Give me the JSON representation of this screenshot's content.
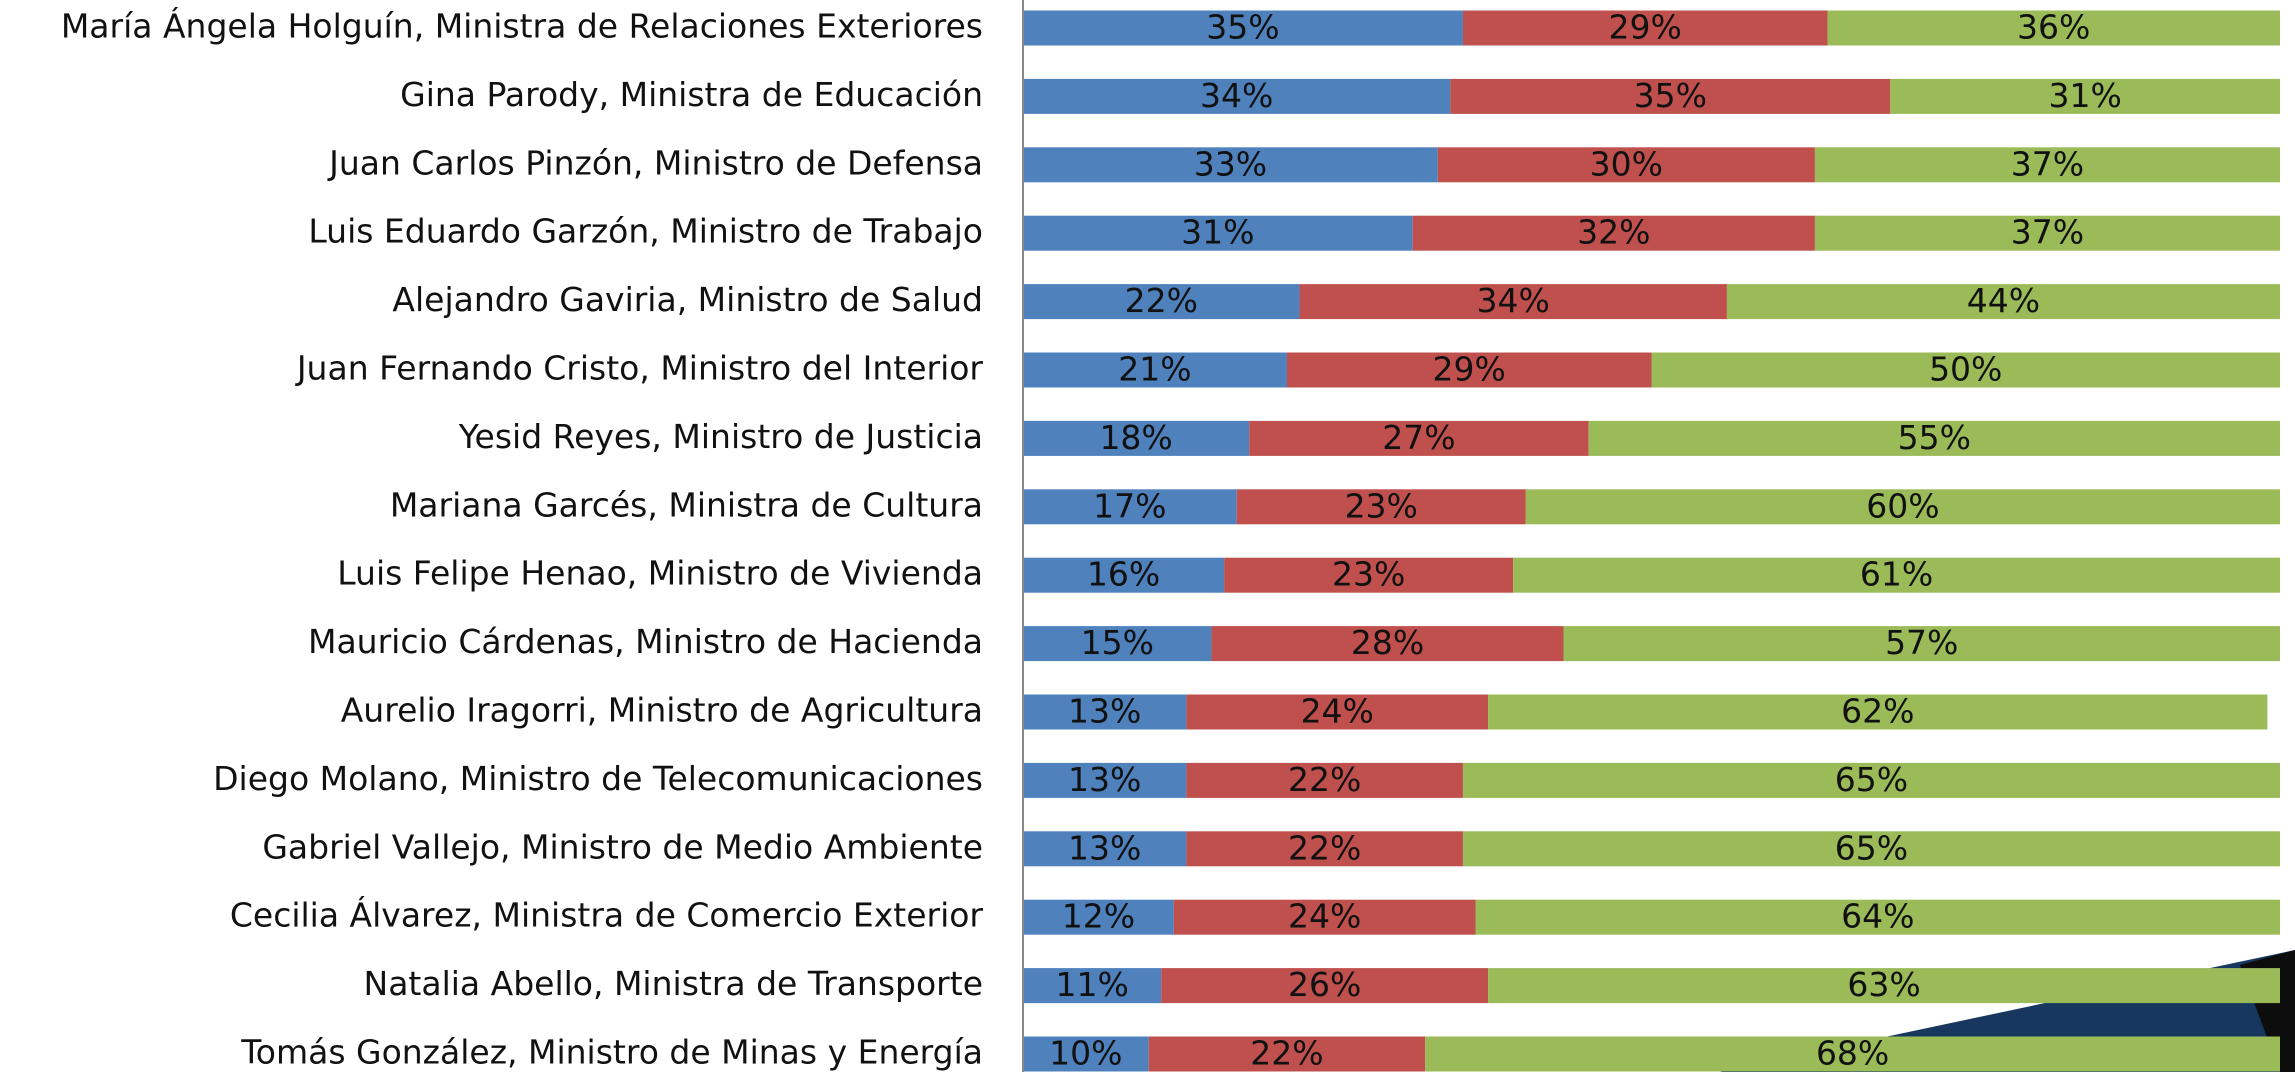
{
  "chart_data": {
    "type": "stacked-bar",
    "orientation": "horizontal",
    "categories": [
      "María Ángela Holguín, Ministra de Relaciones Exteriores",
      "Gina Parody, Ministra de Educación",
      "Juan Carlos Pinzón, Ministro de Defensa",
      "Luis Eduardo Garzón, Ministro de Trabajo",
      "Alejandro Gaviria, Ministro de Salud",
      "Juan Fernando Cristo, Ministro del Interior",
      "Yesid Reyes, Ministro de Justicia",
      "Mariana Garcés, Ministra de Cultura",
      "Luis Felipe Henao, Ministro de Vivienda",
      "Mauricio Cárdenas, Ministro de Hacienda",
      "Aurelio Iragorri, Ministro de Agricultura",
      "Diego Molano, Ministro de Telecomunicaciones",
      "Gabriel Vallejo, Ministro de Medio Ambiente",
      "Cecilia Álvarez, Ministra de Comercio Exterior",
      "Natalia Abello, Ministra de Transporte",
      "Tomás González, Ministro de Minas y Energía"
    ],
    "series": [
      {
        "color": "#4f81bd",
        "values": [
          35,
          34,
          33,
          31,
          22,
          21,
          18,
          17,
          16,
          15,
          13,
          13,
          13,
          12,
          11,
          10
        ],
        "value_labels": [
          "35%",
          "34%",
          "33%",
          "31%",
          "22%",
          "21%",
          "18%",
          "17%",
          "16%",
          "15%",
          "13%",
          "13%",
          "13%",
          "12%",
          "11%",
          "10%"
        ]
      },
      {
        "color": "#c0504d",
        "values": [
          29,
          35,
          30,
          32,
          34,
          29,
          27,
          23,
          23,
          28,
          24,
          22,
          22,
          24,
          26,
          22
        ],
        "value_labels": [
          "29%",
          "35%",
          "30%",
          "32%",
          "34%",
          "29%",
          "27%",
          "23%",
          "23%",
          "28%",
          "24%",
          "22%",
          "22%",
          "24%",
          "26%",
          "22%"
        ]
      },
      {
        "color": "#9bbb59",
        "values": [
          36,
          31,
          37,
          37,
          44,
          50,
          55,
          60,
          61,
          57,
          62,
          65,
          65,
          64,
          63,
          68
        ],
        "value_labels": [
          "36%",
          "31%",
          "37%",
          "37%",
          "44%",
          "50%",
          "55%",
          "60%",
          "61%",
          "57%",
          "62%",
          "65%",
          "65%",
          "64%",
          "63%",
          "68%"
        ]
      }
    ],
    "xlim": [
      0,
      100
    ]
  }
}
